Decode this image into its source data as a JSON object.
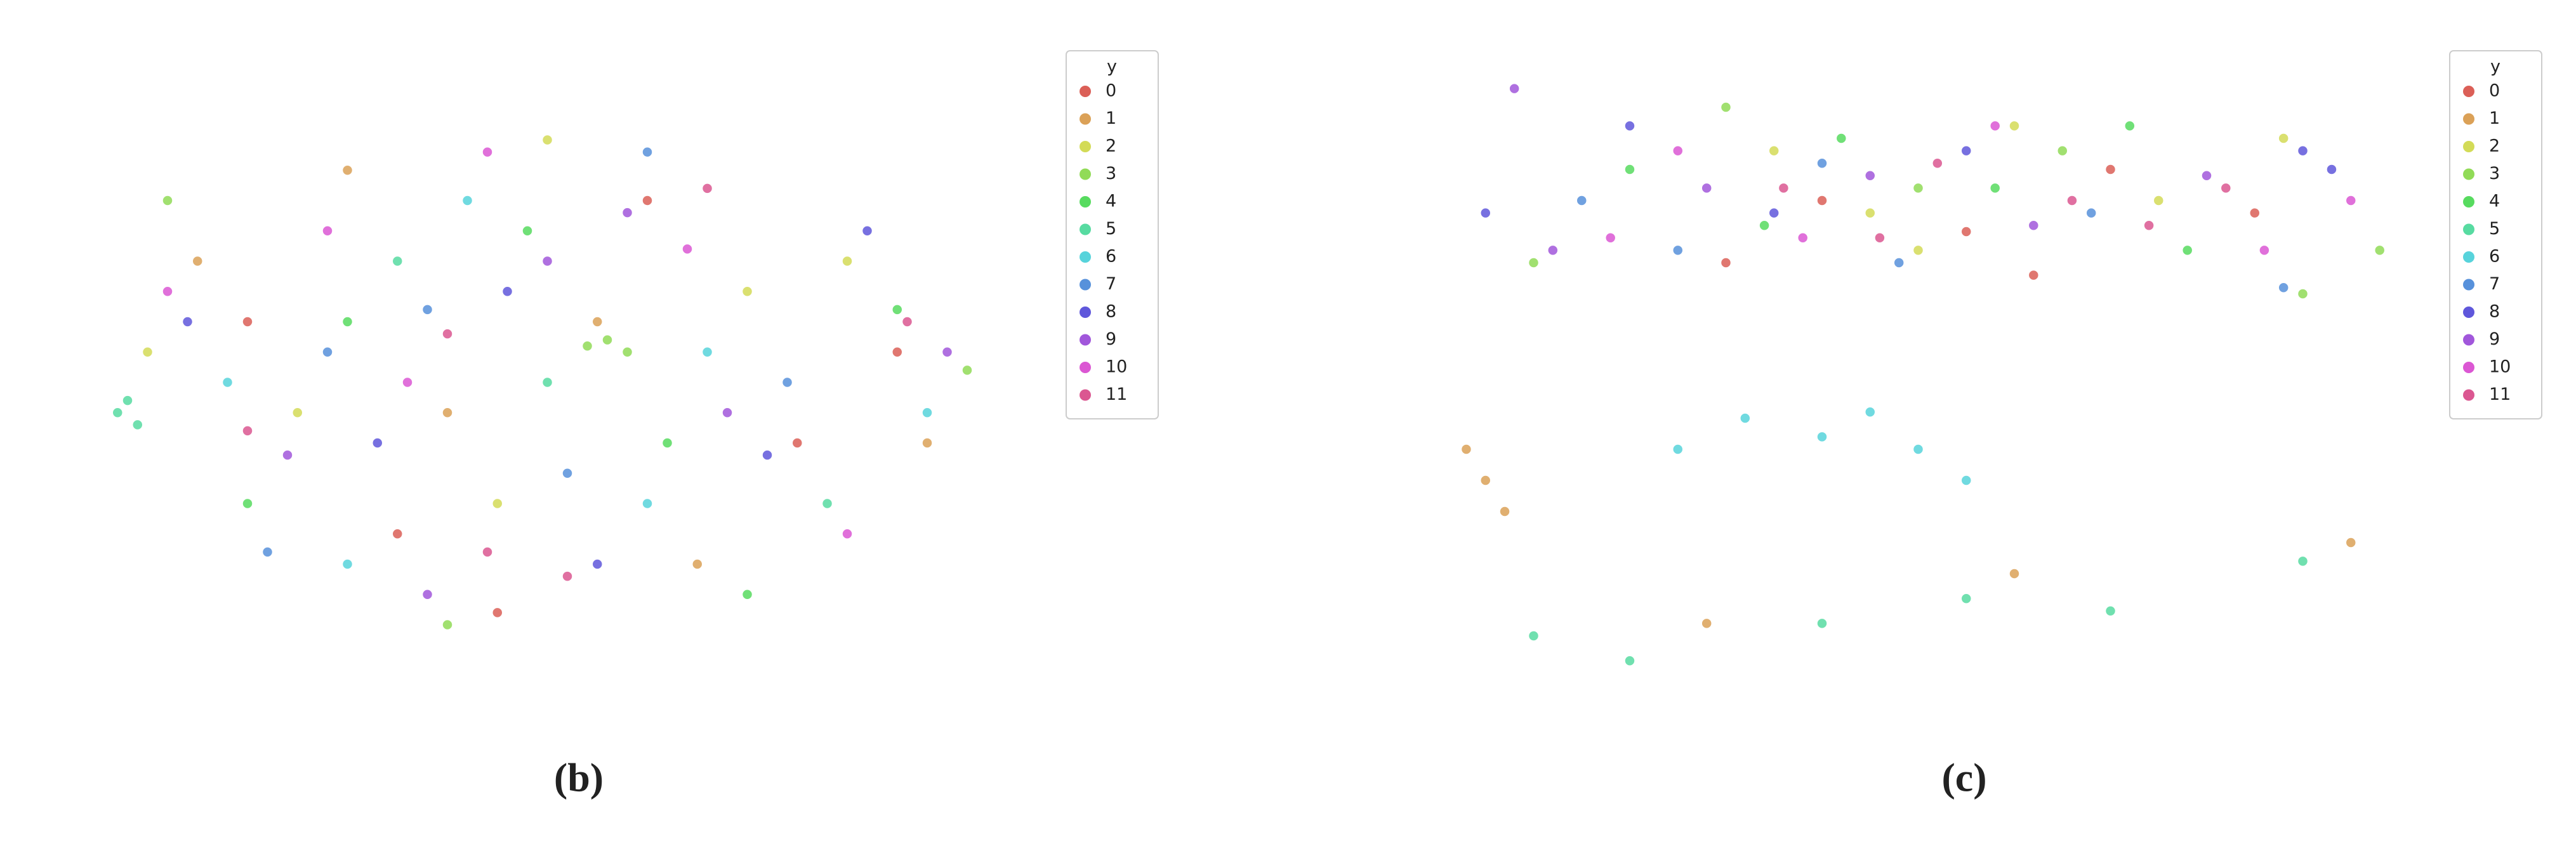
{
  "chart_data": [
    {
      "type": "scatter",
      "label": "(b)",
      "legend_title": "y",
      "legend": "right",
      "xlim": [
        0,
        100
      ],
      "ylim": [
        0,
        100
      ],
      "series": [
        {
          "name": "0",
          "color": "#db5f57",
          "x": [
            20,
            35,
            60,
            75,
            45,
            85
          ],
          "values": [
            60,
            25,
            80,
            40,
            12,
            55
          ]
        },
        {
          "name": "1",
          "color": "#dba157",
          "x": [
            15,
            40,
            65,
            88,
            30,
            55
          ],
          "values": [
            70,
            45,
            20,
            40,
            85,
            60
          ]
        },
        {
          "name": "2",
          "color": "#d3db57",
          "x": [
            25,
            50,
            70,
            10,
            45,
            80
          ],
          "values": [
            45,
            90,
            65,
            55,
            30,
            70
          ]
        },
        {
          "name": "3",
          "color": "#91db57",
          "x": [
            56,
            58,
            54,
            12,
            92,
            40
          ],
          "values": [
            57,
            55,
            56,
            80,
            52,
            10
          ]
        },
        {
          "name": "4",
          "color": "#57db5f",
          "x": [
            30,
            62,
            85,
            20,
            48,
            70
          ],
          "values": [
            60,
            40,
            62,
            30,
            75,
            15
          ]
        },
        {
          "name": "5",
          "color": "#57dba1",
          "x": [
            7,
            9,
            8,
            50,
            78,
            35
          ],
          "values": [
            45,
            43,
            47,
            50,
            30,
            70
          ]
        },
        {
          "name": "6",
          "color": "#57d3db",
          "x": [
            18,
            42,
            66,
            88,
            30,
            60
          ],
          "values": [
            50,
            80,
            55,
            45,
            20,
            30
          ]
        },
        {
          "name": "7",
          "color": "#5791db",
          "x": [
            28,
            52,
            74,
            38,
            60,
            22
          ],
          "values": [
            55,
            35,
            50,
            62,
            88,
            22
          ]
        },
        {
          "name": "8",
          "color": "#5f57db",
          "x": [
            33,
            46,
            72,
            14,
            55,
            82
          ],
          "values": [
            40,
            65,
            38,
            60,
            20,
            75
          ]
        },
        {
          "name": "9",
          "color": "#a157db",
          "x": [
            24,
            50,
            68,
            90,
            38,
            58
          ],
          "values": [
            38,
            70,
            45,
            55,
            15,
            78
          ]
        },
        {
          "name": "10",
          "color": "#db57d3",
          "x": [
            12,
            36,
            64,
            80,
            44,
            28
          ],
          "values": [
            65,
            50,
            72,
            25,
            88,
            75
          ]
        },
        {
          "name": "11",
          "color": "#db5791",
          "x": [
            44,
            52,
            86,
            20,
            66,
            40
          ],
          "values": [
            22,
            18,
            60,
            42,
            82,
            58
          ]
        }
      ]
    },
    {
      "type": "scatter",
      "label": "(c)",
      "legend_title": "y",
      "legend": "right",
      "xlim": [
        0,
        100
      ],
      "ylim": [
        0,
        100
      ],
      "series": [
        {
          "name": "0",
          "color": "#db5f57",
          "x": [
            40,
            55,
            70,
            30,
            85,
            62
          ],
          "values": [
            80,
            75,
            85,
            70,
            78,
            68
          ]
        },
        {
          "name": "1",
          "color": "#dba157",
          "x": [
            3,
            5,
            7,
            28,
            60,
            95
          ],
          "values": [
            40,
            35,
            30,
            12,
            20,
            25
          ]
        },
        {
          "name": "2",
          "color": "#d3db57",
          "x": [
            60,
            50,
            75,
            35,
            45,
            88
          ],
          "values": [
            92,
            72,
            80,
            88,
            78,
            90
          ]
        },
        {
          "name": "3",
          "color": "#91db57",
          "x": [
            10,
            30,
            90,
            65,
            50,
            98
          ],
          "values": [
            70,
            95,
            65,
            88,
            82,
            72
          ]
        },
        {
          "name": "4",
          "color": "#57db5f",
          "x": [
            20,
            42,
            58,
            78,
            34,
            72
          ],
          "values": [
            85,
            90,
            82,
            72,
            76,
            92
          ]
        },
        {
          "name": "5",
          "color": "#57dba1",
          "x": [
            10,
            20,
            40,
            55,
            70,
            90
          ],
          "values": [
            10,
            6,
            12,
            16,
            14,
            22
          ]
        },
        {
          "name": "6",
          "color": "#57d3db",
          "x": [
            25,
            32,
            40,
            50,
            55,
            45
          ],
          "values": [
            40,
            45,
            42,
            40,
            35,
            46
          ]
        },
        {
          "name": "7",
          "color": "#5791db",
          "x": [
            25,
            48,
            68,
            88,
            40,
            15
          ],
          "values": [
            72,
            70,
            78,
            66,
            86,
            80
          ]
        },
        {
          "name": "8",
          "color": "#5f57db",
          "x": [
            5,
            90,
            93,
            20,
            55,
            35
          ],
          "values": [
            78,
            88,
            85,
            92,
            88,
            78
          ]
        },
        {
          "name": "9",
          "color": "#a157db",
          "x": [
            8,
            12,
            45,
            80,
            62,
            28
          ],
          "values": [
            98,
            72,
            84,
            84,
            76,
            82
          ]
        },
        {
          "name": "10",
          "color": "#db57d3",
          "x": [
            18,
            38,
            86,
            95,
            58,
            25
          ],
          "values": [
            74,
            74,
            72,
            80,
            92,
            88
          ]
        },
        {
          "name": "11",
          "color": "#db5791",
          "x": [
            36,
            52,
            74,
            66,
            46,
            82
          ],
          "values": [
            82,
            86,
            76,
            80,
            74,
            82
          ]
        }
      ]
    }
  ]
}
